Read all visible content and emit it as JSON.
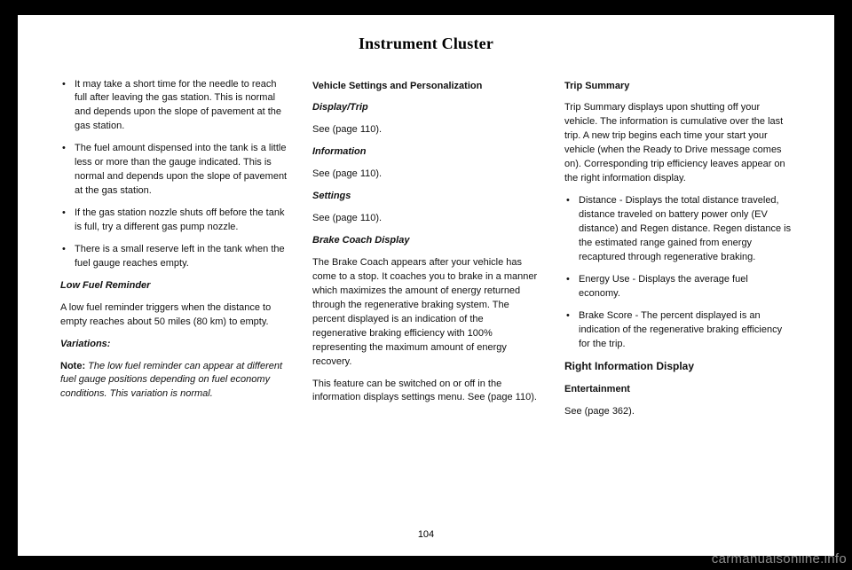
{
  "chapter_title": "Instrument Cluster",
  "page_number": "104",
  "watermark": "carmanualsonline.info",
  "col1": {
    "bullets": [
      "It may take a short time for the needle to reach full after leaving the gas station. This is normal and depends upon the slope of pavement at the gas station.",
      "The fuel amount dispensed into the tank is a little less or more than the gauge indicated. This is normal and depends upon the slope of pavement at the gas station.",
      "If the gas station nozzle shuts off before the tank is full, try a different gas pump nozzle.",
      "There is a small reserve left in the tank when the fuel gauge reaches empty."
    ],
    "low_fuel_heading": "Low Fuel Reminder",
    "low_fuel_body": "A low fuel reminder triggers when the distance to empty reaches about 50 miles (80 km) to empty.",
    "variations_heading": "Variations:",
    "note_label": "Note:",
    "note_body": " The low fuel reminder can appear at different fuel gauge positions depending on fuel economy conditions. This variation is normal."
  },
  "col2": {
    "vsp_heading": "Vehicle Settings and Personalization",
    "display_trip_heading": "Display/Trip",
    "display_trip_body": "See  (page 110).",
    "information_heading": "Information",
    "information_body": "See  (page 110).",
    "settings_heading": "Settings",
    "settings_body": "See  (page 110).",
    "brake_coach_heading": "Brake Coach Display",
    "brake_coach_body1": "The Brake Coach appears after your vehicle has come to a stop. It coaches you to brake in a manner which maximizes the amount of energy returned through the regenerative braking system. The percent displayed is an indication of the regenerative braking efficiency with 100% representing the maximum amount of energy recovery.",
    "brake_coach_body2": "This feature can be switched on or off in the information displays settings menu.  See  (page 110)."
  },
  "col3": {
    "trip_summary_heading": "Trip Summary",
    "trip_summary_body": "Trip Summary displays upon shutting off your vehicle. The information is cumulative over the last trip. A new trip begins each time your start your vehicle (when the Ready to Drive message comes on). Corresponding trip efficiency leaves appear on the right information display.",
    "bullets": [
      "Distance - Displays the total distance traveled, distance traveled on battery power only (EV distance) and Regen distance. Regen distance is the estimated range gained from energy recaptured through regenerative braking.",
      "Energy Use - Displays the average fuel economy.",
      "Brake Score - The percent displayed is an indication of the regenerative braking efficiency for the trip."
    ],
    "right_info_heading": "Right Information Display",
    "entertainment_heading": "Entertainment",
    "entertainment_body": "See  (page 362)."
  }
}
